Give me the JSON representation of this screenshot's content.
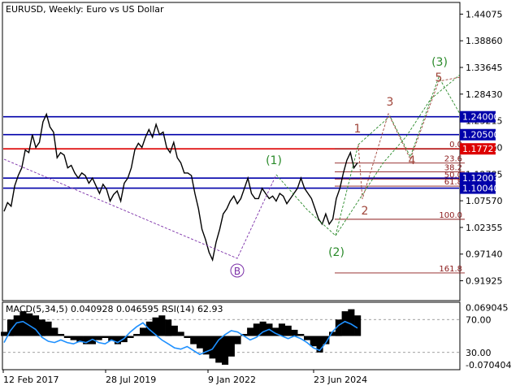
{
  "header": {
    "symbol_title": "EURUSD, Weekly:  Euro vs US Dollar",
    "indicator_title": "MACD(5,34,5) 0.040928 0.046595 RSI(14) 62.93"
  },
  "colors": {
    "background": "#ffffff",
    "frame": "#000000",
    "price_line": "#000000",
    "level_blue": "#0000aa",
    "level_red": "#dd0000",
    "fib": "#8b1a1a",
    "wave_green": "#2a8a2a",
    "wave_brown": "#a0453a",
    "wave_purple": "#7b2fa8",
    "macd_hist": "#000000",
    "rsi_line": "#1e90ff",
    "rsi_levels": "#808080",
    "label_fill": "#0000aa",
    "label_red_fill": "#dd0000"
  },
  "chart_data": [
    {
      "type": "line",
      "role": "price",
      "title": "EURUSD, Weekly:  Euro vs US Dollar",
      "ylim": [
        0.882,
        1.462
      ],
      "price_ticks": [
        "1.44075",
        "1.38860",
        "1.33645",
        "1.28430",
        "1.23215",
        "1.18000",
        "1.12785",
        "1.07570",
        "1.02355",
        "0.97140",
        "0.91925"
      ],
      "time_labels": [
        "12 Feb 2017",
        "28 Jul 2019",
        "9 Jan 2022",
        "23 Jun 2024"
      ],
      "series": [
        {
          "values": [
            1.055,
            1.072,
            1.065,
            1.105,
            1.125,
            1.14,
            1.175,
            1.17,
            1.205,
            1.18,
            1.19,
            1.23,
            1.245,
            1.22,
            1.21,
            1.16,
            1.17,
            1.165,
            1.14,
            1.145,
            1.13,
            1.12,
            1.13,
            1.125,
            1.11,
            1.12,
            1.105,
            1.09,
            1.108,
            1.098,
            1.075,
            1.088,
            1.095,
            1.075,
            1.11,
            1.12,
            1.14,
            1.175,
            1.188,
            1.18,
            1.2,
            1.215,
            1.2,
            1.225,
            1.205,
            1.21,
            1.18,
            1.17,
            1.19,
            1.16,
            1.15,
            1.13,
            1.13,
            1.125,
            1.09,
            1.06,
            1.02,
            1.0,
            0.975,
            0.96,
            0.995,
            1.02,
            1.05,
            1.06,
            1.075,
            1.085,
            1.07,
            1.08,
            1.1,
            1.12,
            1.09,
            1.08,
            1.08,
            1.1,
            1.09,
            1.08,
            1.085,
            1.075,
            1.09,
            1.085,
            1.07,
            1.08,
            1.09,
            1.1,
            1.12,
            1.1,
            1.09,
            1.08,
            1.06,
            1.04,
            1.03,
            1.05,
            1.03,
            1.04,
            1.08,
            1.1,
            1.13,
            1.155,
            1.17,
            1.14,
            1.15
          ]
        }
      ]
    },
    {
      "type": "line",
      "role": "indicator",
      "title": "MACD(5,34,5) 0.040928 0.046595 RSI(14) 62.93",
      "ylim": [
        -0.08,
        0.08
      ],
      "indicator_ticks": [
        "0.069045",
        "70.00",
        "30.00",
        "-0.070404"
      ],
      "series": [
        {
          "name": "MACD",
          "values": [
            0.01,
            0.04,
            0.05,
            0.06,
            0.055,
            0.05,
            0.04,
            0.035,
            0.02,
            0.005,
            -0.005,
            -0.01,
            -0.015,
            -0.02,
            -0.02,
            -0.01,
            -0.005,
            -0.012,
            -0.02,
            -0.015,
            -0.005,
            0.005,
            0.02,
            0.035,
            0.045,
            0.05,
            0.04,
            0.025,
            0.01,
            -0.005,
            -0.02,
            -0.03,
            -0.045,
            -0.055,
            -0.065,
            -0.07,
            -0.05,
            -0.02,
            0.005,
            0.02,
            0.03,
            0.035,
            0.03,
            0.02,
            0.03,
            0.025,
            0.015,
            0.005,
            -0.01,
            -0.025,
            -0.04,
            -0.02,
            0.01,
            0.04,
            0.06,
            0.065,
            0.05
          ]
        },
        {
          "name": "RSI",
          "values": [
            40,
            58,
            70,
            72,
            66,
            60,
            48,
            42,
            40,
            44,
            40,
            38,
            42,
            40,
            45,
            40,
            38,
            44,
            40,
            46,
            56,
            64,
            70,
            60,
            52,
            44,
            38,
            32,
            30,
            34,
            28,
            22,
            26,
            30,
            44,
            52,
            58,
            56,
            50,
            44,
            48,
            56,
            60,
            54,
            50,
            46,
            50,
            46,
            40,
            32,
            28,
            40,
            56,
            66,
            72,
            68,
            62
          ]
        }
      ]
    }
  ],
  "levels": {
    "blue": [
      {
        "label": "1.24000",
        "price": 1.24
      },
      {
        "label": "1.20500",
        "price": 1.205
      },
      {
        "label": "1.12003",
        "price": 1.12
      },
      {
        "label": "1.10040",
        "price": 1.1004
      }
    ],
    "red": {
      "label": "1.17721",
      "price": 1.1772
    }
  },
  "fibonacci": [
    {
      "label": "0.0",
      "price": 1.1772
    },
    {
      "label": "23.6",
      "price": 1.1494
    },
    {
      "label": "38.2",
      "price": 1.1322
    },
    {
      "label": "50.0",
      "price": 1.1183
    },
    {
      "label": "61.8",
      "price": 1.1044
    },
    {
      "label": "100.0",
      "price": 1.0395
    },
    {
      "label": "161.8",
      "price": 0.9345
    }
  ],
  "wave_labels": {
    "B": "B",
    "green": [
      "(1)",
      "(2)",
      "(3)"
    ],
    "brown": [
      "1",
      "2",
      "3",
      "4",
      "5"
    ]
  }
}
